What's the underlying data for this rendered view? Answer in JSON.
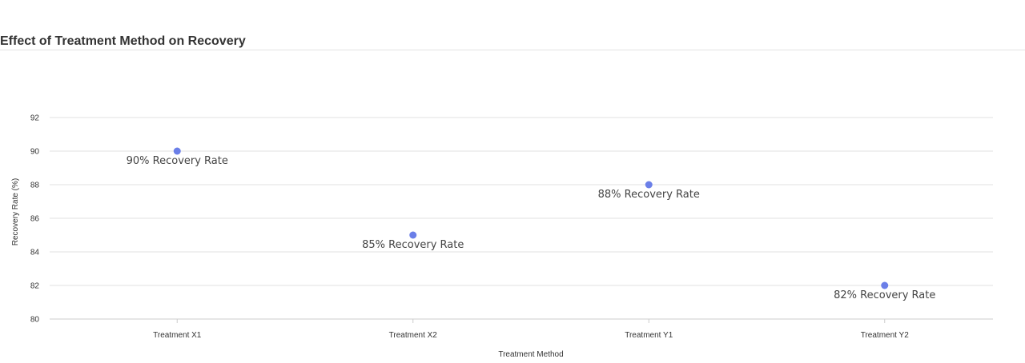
{
  "title": "Effect of Treatment Method on Recovery",
  "chart_data": {
    "type": "scatter",
    "title": "Effect of Treatment Method on Recovery",
    "xlabel": "Treatment Method",
    "ylabel": "Recovery Rate (%)",
    "categories": [
      "Treatment X1",
      "Treatment X2",
      "Treatment Y1",
      "Treatment Y2"
    ],
    "values": [
      90,
      85,
      88,
      82
    ],
    "data_labels": [
      "90% Recovery Rate",
      "85% Recovery Rate",
      "88% Recovery Rate",
      "82% Recovery Rate"
    ],
    "ylim": [
      80,
      92
    ],
    "yticks": [
      80,
      82,
      84,
      86,
      88,
      90,
      92
    ],
    "grid": true,
    "legend": "none",
    "point_color": "#6b7fe8"
  }
}
